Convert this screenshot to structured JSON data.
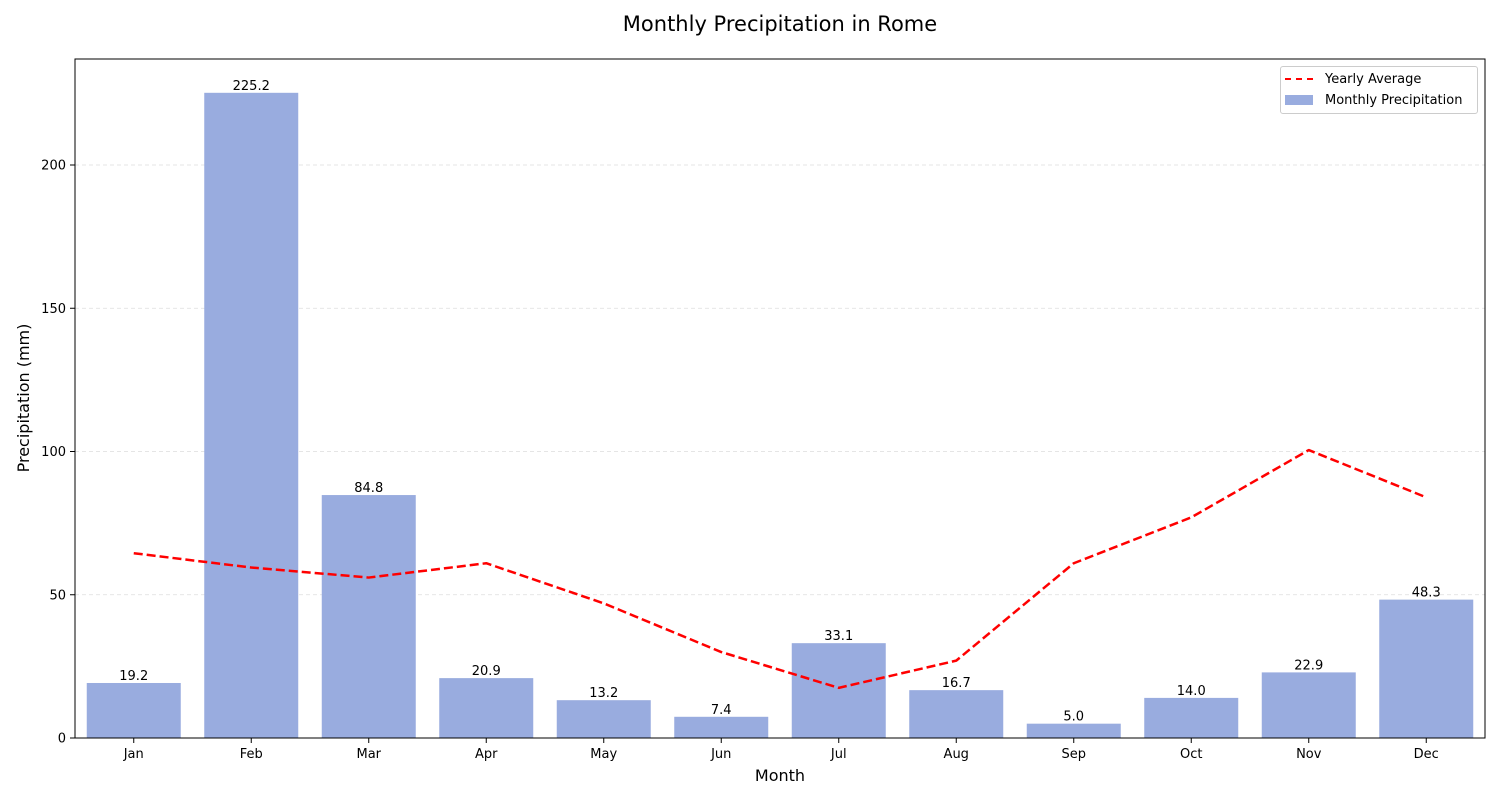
{
  "chart_data": {
    "type": "bar",
    "title": "Monthly Precipitation in Rome",
    "xlabel": "Month",
    "ylabel": "Precipitation (mm)",
    "categories": [
      "Jan",
      "Feb",
      "Mar",
      "Apr",
      "May",
      "Jun",
      "Jul",
      "Aug",
      "Sep",
      "Oct",
      "Nov",
      "Dec"
    ],
    "series": [
      {
        "name": "Monthly Precipitation",
        "kind": "bar",
        "color": "#99acdf",
        "values": [
          19.2,
          225.2,
          84.8,
          20.9,
          13.2,
          7.4,
          33.1,
          16.7,
          5.0,
          14.0,
          22.9,
          48.3
        ],
        "labels": [
          "19.2",
          "225.2",
          "84.8",
          "20.9",
          "13.2",
          "7.4",
          "33.1",
          "16.7",
          "5.0",
          "14.0",
          "22.9",
          "48.3"
        ]
      },
      {
        "name": "Yearly Average",
        "kind": "line",
        "style": "dashed",
        "color": "#ff0000",
        "values": [
          64.5,
          59.5,
          56,
          61,
          47,
          30,
          17.5,
          27,
          61,
          77,
          100.5,
          84
        ]
      }
    ],
    "ylim": [
      0,
      237
    ],
    "yticks": [
      0,
      50,
      100,
      150,
      200
    ],
    "grid": "y-dashed",
    "legend_position": "top-right"
  }
}
